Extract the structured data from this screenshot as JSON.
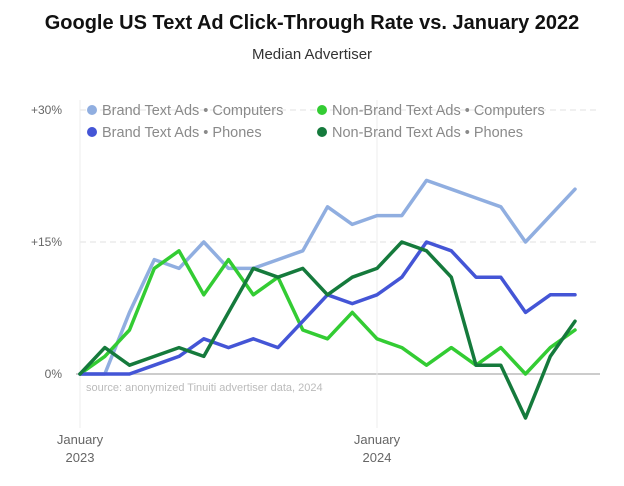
{
  "chart_data": {
    "type": "line",
    "title": "Google US Text Ad Click-Through Rate vs. January 2022",
    "subtitle": "Median Advertiser",
    "source": "source: anonymized Tinuiti advertiser data, 2024",
    "y_ticks": [
      "+30%",
      "+15%",
      "0%"
    ],
    "y_tick_values": [
      30,
      15,
      0
    ],
    "ylim": [
      -7,
      31
    ],
    "x_labels": [
      {
        "index": 0,
        "line1": "January",
        "line2": "2023"
      },
      {
        "index": 12,
        "line1": "January",
        "line2": "2024"
      }
    ],
    "x": [
      "Jan 2023",
      "Feb 2023",
      "Mar 2023",
      "Apr 2023",
      "May 2023",
      "Jun 2023",
      "Jul 2023",
      "Aug 2023",
      "Sep 2023",
      "Oct 2023",
      "Nov 2023",
      "Dec 2023",
      "Jan 2024",
      "Feb 2024",
      "Mar 2024",
      "Apr 2024",
      "May 2024",
      "Jun 2024",
      "Jul 2024",
      "Aug 2024",
      "Sep 2024"
    ],
    "legend_position": "top",
    "series": [
      {
        "name": "Brand Text Ads • Computers",
        "color": "#90aee0",
        "values": [
          0,
          0,
          7,
          13,
          12,
          15,
          12,
          12,
          13,
          14,
          19,
          17,
          18,
          18,
          22,
          21,
          20,
          19,
          15,
          18,
          21
        ]
      },
      {
        "name": "Non-Brand Text Ads • Computers",
        "color": "#33cc33",
        "values": [
          0,
          2,
          5,
          12,
          14,
          9,
          13,
          9,
          11,
          5,
          4,
          7,
          4,
          3,
          1,
          3,
          1,
          3,
          0,
          3,
          5
        ]
      },
      {
        "name": "Brand Text Ads • Phones",
        "color": "#4455d6",
        "values": [
          0,
          0,
          0,
          1,
          2,
          4,
          3,
          4,
          3,
          6,
          9,
          8,
          9,
          11,
          15,
          14,
          11,
          11,
          7,
          9,
          9
        ]
      },
      {
        "name": "Non-Brand Text Ads • Phones",
        "color": "#157a3c",
        "values": [
          0,
          3,
          1,
          2,
          3,
          2,
          7,
          12,
          11,
          12,
          9,
          11,
          12,
          15,
          14,
          11,
          1,
          1,
          -5,
          2,
          6
        ]
      }
    ]
  }
}
